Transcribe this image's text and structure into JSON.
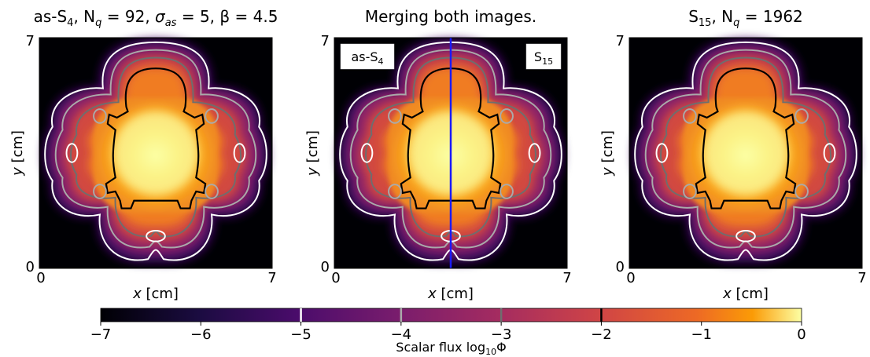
{
  "chart_data": {
    "type": "heatmap",
    "panels": [
      {
        "title": "as-S₄, N_q = 92, σ_as = 5, β = 4.5",
        "title_parts": {
          "a": "as-S",
          "a_sub": "4",
          "b": ", N",
          "b_sub": "q",
          "c": " = 92, ",
          "sigma": "σ",
          "sigma_sub": "as",
          "d": " = 5, β = 4.5"
        },
        "xlabel": "x [cm]",
        "ylabel": "y [cm]",
        "xlim": [
          0,
          7
        ],
        "ylim": [
          0,
          7
        ],
        "ticks": {
          "x": [
            "0",
            "7"
          ],
          "y": [
            "0",
            "7"
          ]
        }
      },
      {
        "title": "Merging both images.",
        "xlabel": "x [cm]",
        "ylabel": "y [cm]",
        "xlim": [
          0,
          7
        ],
        "ylim": [
          0,
          7
        ],
        "ticks": {
          "x": [
            "0",
            "7"
          ],
          "y": [
            "0",
            "7"
          ]
        },
        "left_label": {
          "base": "as-S",
          "sub": "4"
        },
        "right_label": {
          "base": "S",
          "sub": "15"
        },
        "divider_x": 3.5
      },
      {
        "title": "S₁₅, N_q = 1962",
        "title_parts": {
          "a": "S",
          "a_sub": "15",
          "b": ", N",
          "b_sub": "q",
          "c": " = 1962"
        },
        "xlabel": "x [cm]",
        "ylabel": "y [cm]",
        "xlim": [
          0,
          7
        ],
        "ylim": [
          0,
          7
        ],
        "ticks": {
          "x": [
            "0",
            "7"
          ],
          "y": [
            "0",
            "7"
          ]
        }
      }
    ],
    "colorbar": {
      "label_prefix": "Scalar flux log",
      "label_sub": "10",
      "label_suffix": "Φ",
      "range": [
        -7,
        0
      ],
      "ticks": [
        "−7",
        "−6",
        "−5",
        "−4",
        "−3",
        "−2",
        "−1",
        "0"
      ],
      "colormap": "inferno",
      "contour_levels": [
        {
          "value": -5,
          "color": "#ffffff"
        },
        {
          "value": -4,
          "color": "#aaaaaa"
        },
        {
          "value": -3,
          "color": "#6e6e6e"
        },
        {
          "value": -2,
          "color": "#000000"
        }
      ]
    },
    "divider_color": "#1a1aff"
  }
}
